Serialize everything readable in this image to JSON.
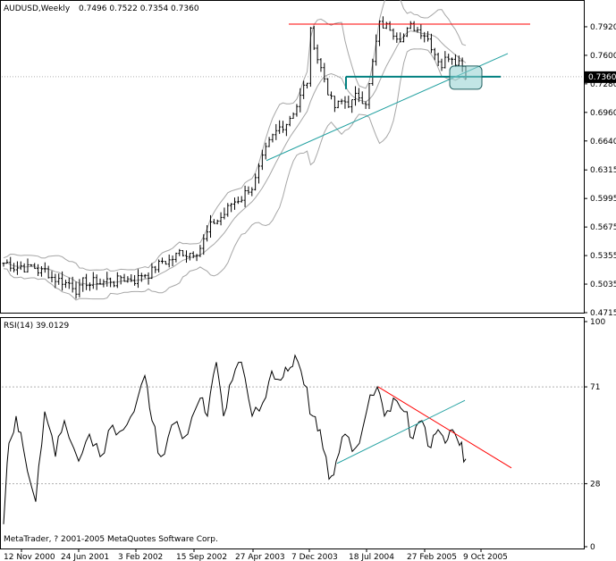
{
  "chart_data": {
    "type": "ohlc",
    "symbol_header": "AUDUSD,Weekly",
    "ohlc_header": "0.7496 0.7522 0.7354 0.7360",
    "last_price_label": "0.7360",
    "price_axis_ticks": [
      "0.7920",
      "0.7600",
      "0.7280",
      "0.6960",
      "0.6640",
      "0.6315",
      "0.5995",
      "0.5675",
      "0.5355",
      "0.5035",
      "0.4715"
    ],
    "price_range": [
      0.4715,
      0.818
    ],
    "last_price": 0.736,
    "date_ticks": [
      "12 Nov 2000",
      "24 Jun 2001",
      "3 Feb 2002",
      "15 Sep 2002",
      "27 Apr 2003",
      "7 Dec 2003",
      "18 Jul 2004",
      "27 Feb 2005",
      "9 Oct 2005"
    ],
    "series": [
      {
        "name": "AUDUSD",
        "kind": "weekly-bars",
        "color": "#000000",
        "close_path": [
          [
            "12 Nov 2000",
            0.527
          ],
          [
            "24 Jun 2001",
            0.502
          ],
          [
            "3 Feb 2002",
            0.512
          ],
          [
            "15 Sep 2002",
            0.545
          ],
          [
            "27 Apr 2003",
            0.618
          ],
          [
            "7 Dec 2003",
            0.735
          ],
          [
            "Feb 2004",
            0.795
          ],
          [
            "Jun 2004",
            0.7
          ],
          [
            "18 Jul 2004",
            0.715
          ],
          [
            "Dec 2004",
            0.79
          ],
          [
            "27 Feb 2005",
            0.79
          ],
          [
            "May 2005",
            0.755
          ],
          [
            "Aug 2005",
            0.765
          ],
          [
            "9 Oct 2005",
            0.745
          ],
          [
            "Nov 2005",
            0.736
          ]
        ]
      },
      {
        "name": "Bollinger bands",
        "kind": "envelope",
        "color": "#a6a6a6"
      }
    ],
    "annotations": [
      {
        "type": "horizontal-line",
        "price": 0.795,
        "color": "#ff0000"
      },
      {
        "type": "horizontal-line",
        "price": 0.736,
        "color": "#008080"
      },
      {
        "type": "trendline",
        "color": "#20a0a0"
      },
      {
        "type": "highlight-box",
        "color": "#8fcfcf"
      }
    ],
    "rsi": {
      "label": "RSI(14) 39.0129",
      "levels": [
        "100",
        "71",
        "28",
        "0"
      ],
      "level_values": [
        100,
        71,
        28,
        0
      ],
      "range": [
        0,
        100
      ],
      "series_color": "#000000",
      "trendlines": [
        {
          "color": "#ff0000",
          "direction": "down"
        },
        {
          "color": "#20a0a0",
          "direction": "up"
        }
      ]
    },
    "grid": false
  },
  "copyright": "MetaTrader, ? 2001-2005 MetaQuotes Software Corp."
}
